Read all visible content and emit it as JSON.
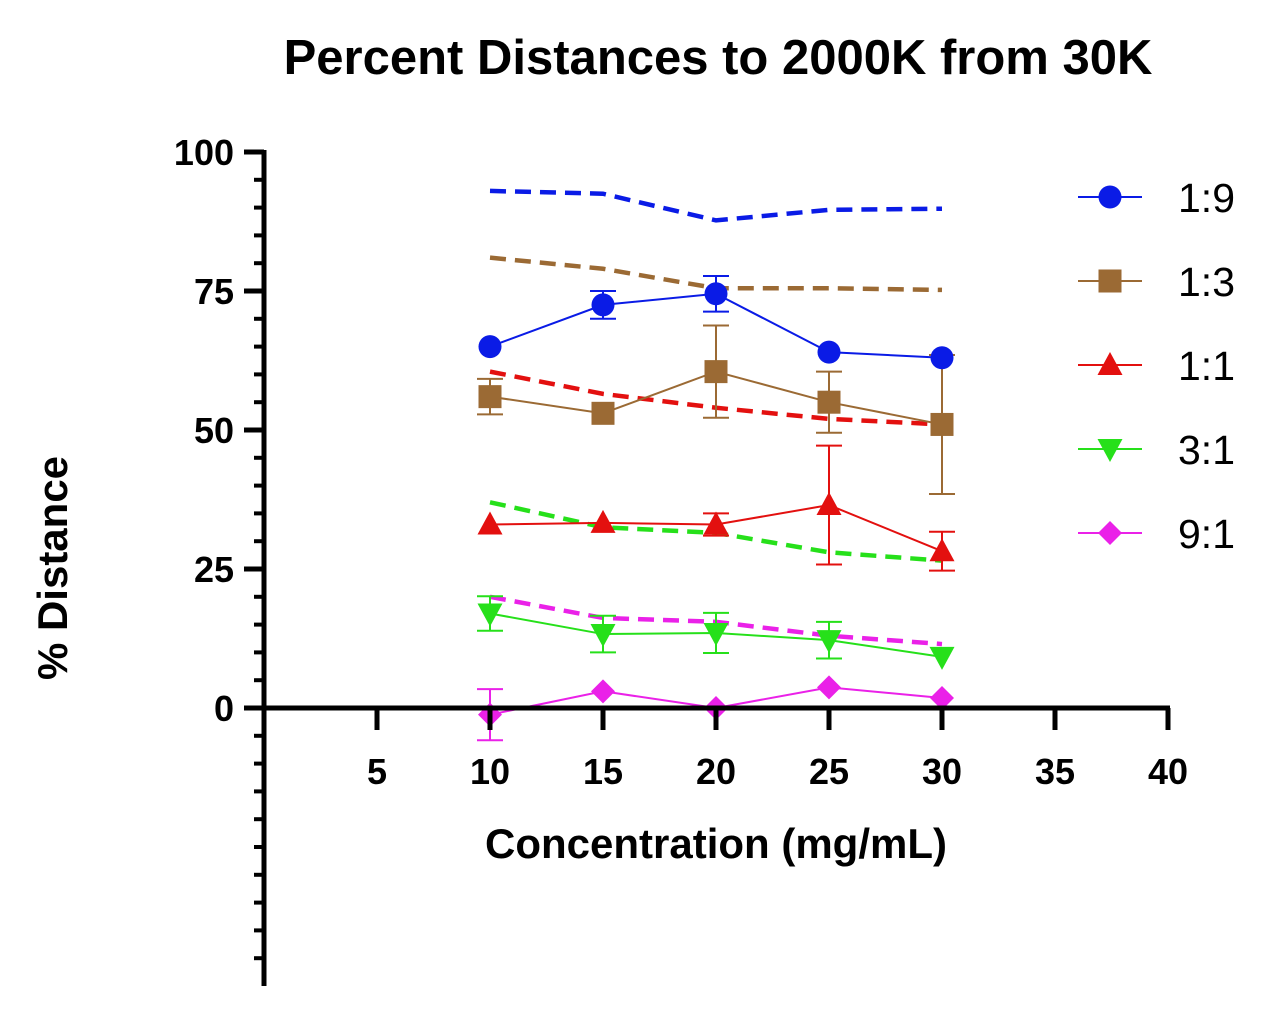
{
  "chart_data": {
    "type": "line",
    "title": "Percent Distances to 2000K from 30K",
    "xlabel": "Concentration (mg/mL)",
    "ylabel": "% Distance",
    "xlim": [
      0,
      40
    ],
    "ylim": [
      -50,
      100
    ],
    "x_ticks": [
      5,
      10,
      15,
      20,
      25,
      30,
      35,
      40
    ],
    "x_tick_labels": [
      "5",
      "10",
      "15",
      "20",
      "25",
      "30",
      "35",
      "40"
    ],
    "y_ticks": [
      0,
      25,
      50,
      75,
      100
    ],
    "y_tick_labels": [
      "0",
      "25",
      "50",
      "75",
      "100"
    ],
    "legend_position": "right",
    "x": [
      10,
      15,
      20,
      25,
      30
    ],
    "series": [
      {
        "name": "1:9",
        "color": "#0a1be6",
        "marker": "circle",
        "values": [
          65,
          72.5,
          74.5,
          64,
          63
        ],
        "errors": [
          0,
          2.5,
          3.2,
          0,
          0
        ],
        "fit": [
          93,
          92.5,
          87.7,
          89.6,
          89.8
        ]
      },
      {
        "name": "1:3",
        "color": "#9b6a34",
        "marker": "square",
        "values": [
          56,
          53,
          60.5,
          55,
          51
        ],
        "errors": [
          3.2,
          0,
          8.3,
          5.5,
          12.5
        ],
        "fit": [
          81,
          79,
          75.5,
          75.5,
          75.2
        ]
      },
      {
        "name": "1:1",
        "color": "#e3100f",
        "marker": "triangle-up",
        "values": [
          33,
          33.3,
          33,
          36.5,
          28.2
        ],
        "errors": [
          0,
          0,
          2,
          10.7,
          3.5
        ],
        "fit": [
          60.5,
          56.5,
          54,
          52,
          51
        ]
      },
      {
        "name": "3:1",
        "color": "#26e01a",
        "marker": "triangle-down",
        "values": [
          17,
          13.3,
          13.5,
          12.2,
          9.2
        ],
        "errors": [
          3.1,
          3.3,
          3.6,
          3.3,
          0
        ],
        "fit": [
          37,
          32.5,
          31.5,
          28,
          26.5
        ]
      },
      {
        "name": "9:1",
        "color": "#ea21e8",
        "marker": "diamond",
        "values": [
          -1.2,
          3,
          0,
          3.7,
          1.8
        ],
        "errors": [
          4.6,
          0,
          0,
          0,
          0
        ],
        "fit": [
          20,
          16.2,
          15.5,
          13,
          11.5
        ]
      }
    ]
  }
}
